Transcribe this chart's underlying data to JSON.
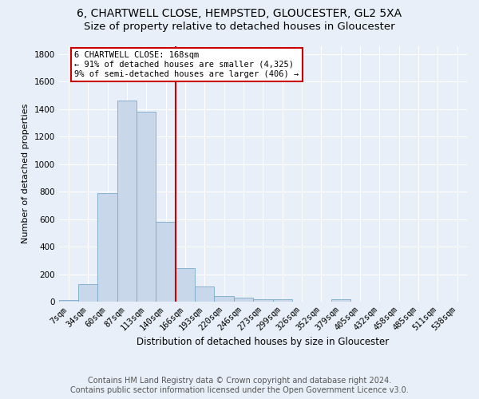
{
  "title": "6, CHARTWELL CLOSE, HEMPSTED, GLOUCESTER, GL2 5XA",
  "subtitle": "Size of property relative to detached houses in Gloucester",
  "xlabel": "Distribution of detached houses by size in Gloucester",
  "ylabel": "Number of detached properties",
  "bar_color": "#c8d8ea",
  "bar_edge_color": "#7aaacb",
  "categories": [
    "7sqm",
    "34sqm",
    "60sqm",
    "87sqm",
    "113sqm",
    "140sqm",
    "166sqm",
    "193sqm",
    "220sqm",
    "246sqm",
    "273sqm",
    "299sqm",
    "326sqm",
    "352sqm",
    "379sqm",
    "405sqm",
    "432sqm",
    "458sqm",
    "485sqm",
    "511sqm",
    "538sqm"
  ],
  "values": [
    10,
    125,
    790,
    1460,
    1380,
    580,
    245,
    110,
    40,
    30,
    20,
    15,
    0,
    0,
    20,
    0,
    0,
    0,
    0,
    0,
    0
  ],
  "ylim": [
    0,
    1860
  ],
  "yticks": [
    0,
    200,
    400,
    600,
    800,
    1000,
    1200,
    1400,
    1600,
    1800
  ],
  "property_bin_index": 6,
  "vline_color": "#cc0000",
  "annotation_text_line1": "6 CHARTWELL CLOSE: 168sqm",
  "annotation_text_line2": "← 91% of detached houses are smaller (4,325)",
  "annotation_text_line3": "9% of semi-detached houses are larger (406) →",
  "footer_line1": "Contains HM Land Registry data © Crown copyright and database right 2024.",
  "footer_line2": "Contains public sector information licensed under the Open Government Licence v3.0.",
  "background_color": "#e8eff8",
  "grid_color": "#ffffff",
  "title_fontsize": 10,
  "subtitle_fontsize": 9.5,
  "xlabel_fontsize": 8.5,
  "ylabel_fontsize": 8,
  "tick_fontsize": 7.5,
  "annot_fontsize": 7.5,
  "footer_fontsize": 7
}
